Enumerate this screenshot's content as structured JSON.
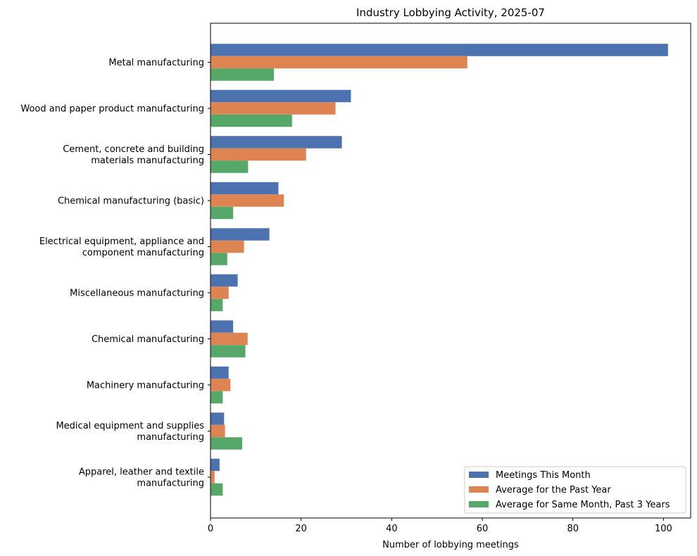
{
  "chart_data": {
    "type": "bar",
    "orientation": "horizontal",
    "title": "Industry Lobbying Activity, 2025-07",
    "xlabel": "Number of lobbying meetings",
    "ylabel": "",
    "xlim": [
      0,
      106
    ],
    "xticks": [
      0,
      20,
      40,
      60,
      80,
      100
    ],
    "grid": false,
    "legend_position": "lower-right",
    "categories": [
      [
        "Metal manufacturing"
      ],
      [
        "Wood and paper product manufacturing"
      ],
      [
        "Cement, concrete and building",
        "materials manufacturing"
      ],
      [
        "Chemical manufacturing (basic)"
      ],
      [
        "Electrical equipment, appliance and",
        "component manufacturing"
      ],
      [
        "Miscellaneous manufacturing"
      ],
      [
        "Chemical manufacturing"
      ],
      [
        "Machinery manufacturing"
      ],
      [
        "Medical equipment and supplies",
        "manufacturing"
      ],
      [
        "Apparel, leather and textile",
        "manufacturing"
      ]
    ],
    "series": [
      {
        "name": "Meetings This Month",
        "color": "#4c72b0",
        "values": [
          101,
          31,
          29,
          15,
          13,
          6,
          5,
          4,
          3,
          2
        ]
      },
      {
        "name": "Average for the Past Year",
        "color": "#dd8452",
        "values": [
          56.7,
          27.6,
          21.1,
          16.2,
          7.4,
          4.0,
          8.2,
          4.4,
          3.2,
          0.9
        ]
      },
      {
        "name": "Average for Same Month, Past 3 Years",
        "color": "#55a868",
        "values": [
          14.0,
          18.0,
          8.3,
          5.0,
          3.7,
          2.7,
          7.7,
          2.7,
          7.0,
          2.7
        ]
      }
    ]
  }
}
